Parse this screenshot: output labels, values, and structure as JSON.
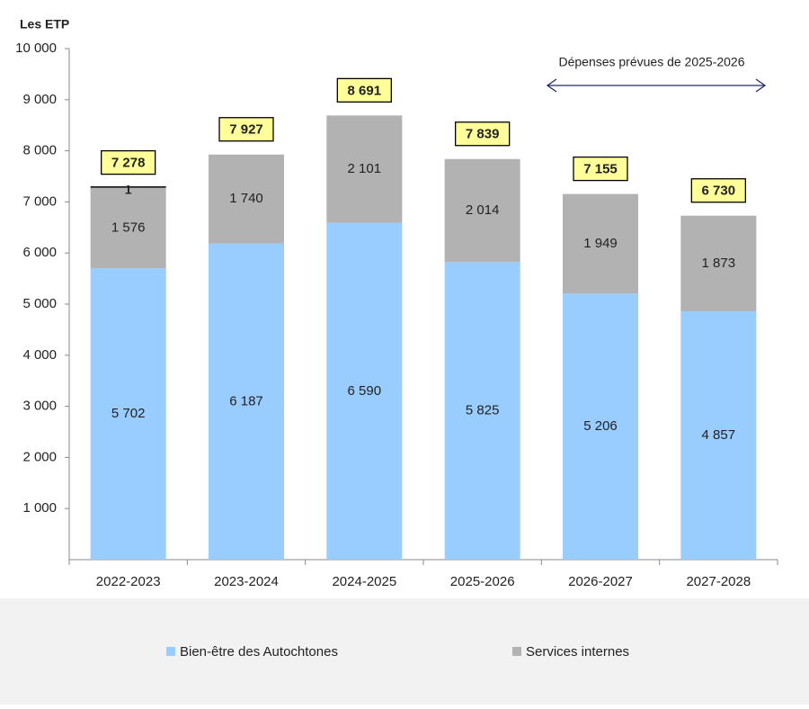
{
  "chart_data": {
    "type": "stacked-bar",
    "y_axis_title": "Les ETP",
    "categories": [
      "2022-2023",
      "2023-2024",
      "2024-2025",
      "2025-2026",
      "2026-2027",
      "2027-2028"
    ],
    "series": [
      {
        "name": "Bien-être des Autochtones",
        "color": "#99ccff",
        "values": [
          5702,
          6187,
          6590,
          5825,
          5206,
          4857
        ],
        "value_labels": [
          "5 702",
          "6 187",
          "6 590",
          "5 825",
          "5 206",
          "4 857"
        ]
      },
      {
        "name": "Services internes",
        "color": "#b2b2b2",
        "values": [
          1576,
          1740,
          2101,
          2014,
          1949,
          1873
        ],
        "value_labels": [
          "1 576",
          "1 740",
          "2 101",
          "2 014",
          "1 949",
          "1 873"
        ]
      },
      {
        "color": "#000000",
        "values": [
          1,
          null,
          null,
          null,
          null,
          null
        ]
      }
    ],
    "totals": {
      "values": [
        7278,
        7927,
        8691,
        7839,
        7155,
        6730
      ],
      "value_labels": [
        "7 278",
        "7 927",
        "8 691",
        "7 839",
        "7 155",
        "6 730"
      ]
    },
    "annotation": "Dépenses prévues de 2025-2026",
    "ylim": [
      0,
      10000
    ],
    "yticks": [
      {
        "value": 1000,
        "label": "1 000"
      },
      {
        "value": 2000,
        "label": "2 000"
      },
      {
        "value": 3000,
        "label": "3 000"
      },
      {
        "value": 4000,
        "label": "4 000"
      },
      {
        "value": 5000,
        "label": "5 000"
      },
      {
        "value": 6000,
        "label": "6 000"
      },
      {
        "value": 7000,
        "label": "7 000"
      },
      {
        "value": 8000,
        "label": "8 000"
      },
      {
        "value": 9000,
        "label": "9 000"
      },
      {
        "value": 10000,
        "label": "10 000"
      }
    ],
    "grid": false,
    "legend": "bottom"
  }
}
